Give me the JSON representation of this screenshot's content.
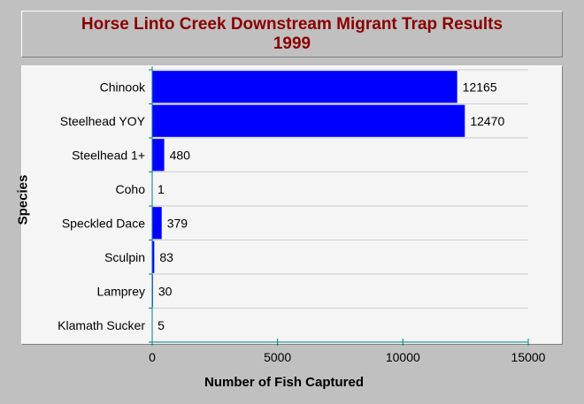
{
  "chart_data": {
    "type": "bar",
    "orientation": "horizontal",
    "title_line1": "Horse Linto Creek Downstream Migrant Trap Results",
    "title_line2": "1999",
    "xlabel": "Number of Fish Captured",
    "ylabel": "Species",
    "categories": [
      "Chinook",
      "Steelhead YOY",
      "Steelhead 1+",
      "Coho",
      "Speckled Dace",
      "Sculpin",
      "Lamprey",
      "Klamath Sucker"
    ],
    "values": [
      12165,
      12470,
      480,
      1,
      379,
      83,
      30,
      5
    ],
    "data_labels": [
      "12165",
      "12470",
      "480",
      "1",
      "379",
      "83",
      "30",
      "5"
    ],
    "xlim": [
      0,
      15000
    ],
    "xticks": [
      "0",
      "5000",
      "10000",
      "15000"
    ],
    "grid": "horizontal lines between categories",
    "colors": {
      "bar": "#0000ff",
      "axis": "#008080",
      "grid": "#cccccc",
      "title": "#8b0000",
      "background": "#c0c0c0",
      "plot_background": "#f5f5f5"
    }
  }
}
